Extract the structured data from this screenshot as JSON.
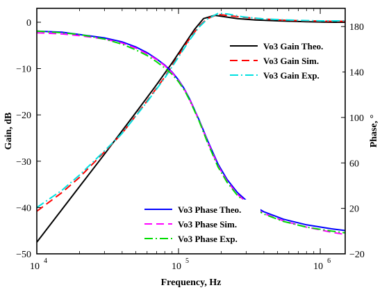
{
  "chart_data": {
    "type": "line",
    "xlabel": "Frequency, Hz",
    "ylabel": "Gain, dB",
    "ylabel_right": "Phase, °",
    "x_scale": "log",
    "xlim": [
      10000,
      1500000
    ],
    "ylim": [
      -50,
      3
    ],
    "ylim_right": [
      -20,
      196
    ],
    "x_ticks": [
      {
        "value": 10000,
        "base": "10",
        "exp": "4"
      },
      {
        "value": 100000,
        "base": "10",
        "exp": "5"
      },
      {
        "value": 1000000,
        "base": "10",
        "exp": "6"
      }
    ],
    "y_ticks": [
      "0",
      "−10",
      "−20",
      "−30",
      "−40",
      "−50"
    ],
    "y_right_ticks": [
      "180",
      "140",
      "100",
      "60",
      "20",
      "−20"
    ],
    "grid": false,
    "legend_gain_position": "top-right",
    "legend_phase_position": "bottom-right",
    "series": [
      {
        "name": "Vo3 Gain Theo.",
        "axis": "left",
        "color": "#000000",
        "dash": "solid",
        "x": [
          10000,
          20000,
          30000,
          50000,
          70000,
          90000,
          110000,
          130000,
          150000,
          180000,
          210000,
          260000,
          350000,
          500000,
          800000,
          1200000,
          1500000
        ],
        "y": [
          -47.5,
          -35.5,
          -28.5,
          -19.5,
          -13.5,
          -8.8,
          -4.8,
          -1.5,
          0.8,
          1.5,
          1.2,
          0.8,
          0.5,
          0.3,
          0.1,
          0,
          0
        ]
      },
      {
        "name": "Vo3 Gain Sim.",
        "axis": "left",
        "color": "#ff0000",
        "dash": "dashed",
        "x": [
          10000,
          15000,
          20000,
          30000,
          40000,
          60000,
          80000,
          100000,
          120000,
          140000,
          160000,
          190000,
          230000,
          300000,
          500000,
          800000,
          1200000,
          1500000
        ],
        "y": [
          -40.8,
          -36.8,
          -33.5,
          -28,
          -24,
          -17,
          -11.8,
          -7.2,
          -3.5,
          -0.8,
          0.8,
          1.7,
          1.4,
          1,
          0.5,
          0.3,
          0.2,
          0.2
        ]
      },
      {
        "name": "Vo3 Gain Exp.",
        "axis": "left",
        "color": "#00e0e0",
        "dash": "dashdot",
        "x": [
          10000,
          15000,
          20000,
          30000,
          40000,
          60000,
          80000,
          100000,
          120000,
          140000,
          160000,
          190000,
          220000,
          280000,
          400000,
          700000,
          1000000,
          1500000
        ],
        "y": [
          -40,
          -36.3,
          -33,
          -27.8,
          -24,
          -17.2,
          -12,
          -7.5,
          -3.8,
          -1,
          0.7,
          1.9,
          1.8,
          1.2,
          0.7,
          0.4,
          0.3,
          0.3
        ]
      },
      {
        "name": "Vo3 Phase Theo.",
        "axis": "right",
        "color": "#0000ff",
        "dash": "solid",
        "x": [
          10000,
          15000,
          20000,
          30000,
          40000,
          50000,
          60000,
          70000,
          80000,
          90000,
          100000,
          110000,
          120000,
          140000,
          160000,
          190000,
          220000,
          260000,
          320000,
          400000,
          550000,
          800000,
          1200000,
          1500000
        ],
        "y": [
          176,
          175,
          173,
          170,
          166.5,
          162,
          157,
          151.5,
          146,
          140,
          133,
          125,
          116,
          97.5,
          80,
          59,
          45.5,
          34,
          24,
          17,
          10.5,
          5.5,
          2,
          0.5
        ]
      },
      {
        "name": "Vo3 Phase Sim.",
        "axis": "right",
        "color": "#ff00ff",
        "dash": "dashed",
        "x": [
          10000,
          15000,
          20000,
          30000,
          40000,
          50000,
          60000,
          70000,
          80000,
          90000,
          100000,
          110000,
          120000,
          140000,
          160000,
          190000,
          220000,
          260000,
          320000,
          400000,
          550000,
          800000,
          1200000,
          1500000
        ],
        "y": [
          174.5,
          173.5,
          172,
          169,
          165.5,
          161,
          156,
          151,
          145.5,
          139.5,
          132.5,
          124.5,
          115.5,
          97,
          79,
          57.5,
          44,
          32.5,
          22.5,
          15.5,
          9,
          3.5,
          -1,
          -3
        ]
      },
      {
        "name": "Vo3 Phase Exp.",
        "axis": "right",
        "color": "#00dd00",
        "dash": "dashdot",
        "x": [
          10000,
          15000,
          20000,
          30000,
          40000,
          50000,
          60000,
          70000,
          80000,
          90000,
          100000,
          110000,
          120000,
          140000,
          160000,
          190000,
          220000,
          260000,
          320000,
          400000,
          550000,
          800000,
          1200000,
          1500000
        ],
        "y": [
          176,
          174.5,
          173,
          169,
          164.5,
          159.5,
          154.5,
          149,
          143.5,
          138,
          131.5,
          124,
          115,
          96.5,
          78,
          56.5,
          43,
          31.5,
          22,
          15,
          8.5,
          3.5,
          0,
          -1.5
        ]
      }
    ]
  }
}
